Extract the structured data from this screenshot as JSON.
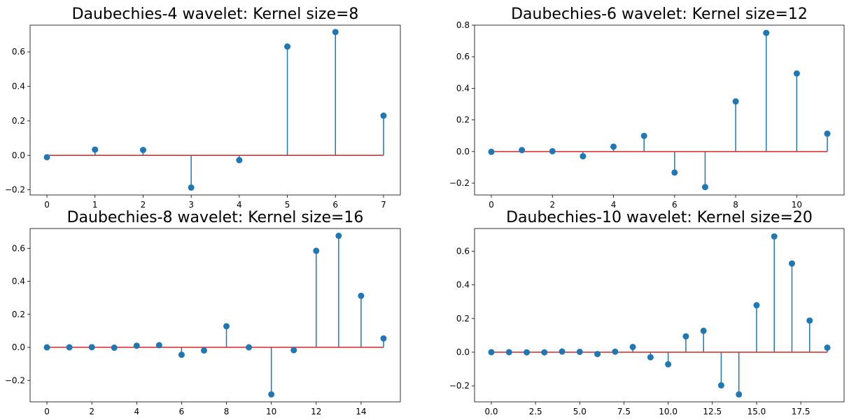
{
  "chart_data": [
    {
      "type": "stem",
      "title": "Daubechies-4 wavelet: Kernel size=8",
      "x": [
        0,
        1,
        2,
        3,
        4,
        5,
        6,
        7
      ],
      "values": [
        -0.011,
        0.033,
        0.031,
        -0.187,
        -0.028,
        0.631,
        0.715,
        0.23
      ],
      "xlim": [
        -0.35,
        7.35
      ],
      "ylim": [
        -0.23,
        0.755
      ],
      "xticks": [
        0,
        1,
        2,
        3,
        4,
        5,
        6,
        7
      ],
      "xtick_labels": [
        "0",
        "1",
        "2",
        "3",
        "4",
        "5",
        "6",
        "7"
      ],
      "yticks": [
        -0.2,
        0.0,
        0.2,
        0.4,
        0.6
      ],
      "ytick_labels": [
        "−0.2",
        "0.0",
        "0.2",
        "0.4",
        "0.6"
      ],
      "xlabel": "",
      "ylabel": "",
      "grid": false,
      "baseline": 0
    },
    {
      "type": "stem",
      "title": "Daubechies-6 wavelet: Kernel size=12",
      "x": [
        0,
        1,
        2,
        3,
        4,
        5,
        6,
        7,
        8,
        9,
        10,
        11
      ],
      "values": [
        -0.002,
        0.009,
        0.002,
        -0.03,
        0.031,
        0.099,
        -0.133,
        -0.225,
        0.317,
        0.751,
        0.494,
        0.113
      ],
      "xlim": [
        -0.55,
        11.55
      ],
      "ylim": [
        -0.275,
        0.8
      ],
      "xticks": [
        0,
        2,
        4,
        6,
        8,
        10
      ],
      "xtick_labels": [
        "0",
        "2",
        "4",
        "6",
        "8",
        "10"
      ],
      "yticks": [
        -0.2,
        0.0,
        0.2,
        0.4,
        0.6,
        0.8
      ],
      "ytick_labels": [
        "−0.2",
        "0.0",
        "0.2",
        "0.4",
        "0.6",
        "0.8"
      ],
      "xlabel": "",
      "ylabel": "",
      "grid": false,
      "baseline": 0
    },
    {
      "type": "stem",
      "title": "Daubechies-8 wavelet: Kernel size=16",
      "x": [
        0,
        1,
        2,
        3,
        4,
        5,
        6,
        7,
        8,
        9,
        10,
        11,
        12,
        13,
        14,
        15
      ],
      "values": [
        0.0,
        0.0,
        0.001,
        -0.002,
        0.01,
        0.013,
        -0.045,
        -0.019,
        0.128,
        0.0,
        -0.285,
        -0.017,
        0.585,
        0.676,
        0.312,
        0.054
      ],
      "xlim": [
        -0.75,
        15.75
      ],
      "ylim": [
        -0.33,
        0.72
      ],
      "xticks": [
        0,
        2,
        4,
        6,
        8,
        10,
        12,
        14
      ],
      "xtick_labels": [
        "0",
        "2",
        "4",
        "6",
        "8",
        "10",
        "12",
        "14"
      ],
      "yticks": [
        -0.2,
        0.0,
        0.2,
        0.4,
        0.6
      ],
      "ytick_labels": [
        "−0.2",
        "0.0",
        "0.2",
        "0.4",
        "0.6"
      ],
      "xlabel": "",
      "ylabel": "",
      "grid": false,
      "baseline": 0
    },
    {
      "type": "stem",
      "title": "Daubechies-10 wavelet: Kernel size=20",
      "x": [
        0,
        1,
        2,
        3,
        4,
        5,
        6,
        7,
        8,
        9,
        10,
        11,
        12,
        13,
        14,
        15,
        16,
        17,
        18,
        19
      ],
      "values": [
        0.0,
        0.0,
        -0.001,
        -0.001,
        0.004,
        0.002,
        -0.011,
        0.003,
        0.031,
        -0.03,
        -0.072,
        0.094,
        0.127,
        -0.197,
        -0.251,
        0.279,
        0.688,
        0.527,
        0.188,
        0.027
      ],
      "xlim": [
        -0.95,
        19.95
      ],
      "ylim": [
        -0.295,
        0.735
      ],
      "xticks": [
        0.0,
        2.5,
        5.0,
        7.5,
        10.0,
        12.5,
        15.0,
        17.5
      ],
      "xtick_labels": [
        "0.0",
        "2.5",
        "5.0",
        "7.5",
        "10.0",
        "12.5",
        "15.0",
        "17.5"
      ],
      "yticks": [
        -0.2,
        0.0,
        0.2,
        0.4,
        0.6
      ],
      "ytick_labels": [
        "−0.2",
        "0.0",
        "0.2",
        "0.4",
        "0.6"
      ],
      "xlabel": "",
      "ylabel": "",
      "grid": false,
      "baseline": 0
    }
  ],
  "colors": {
    "stem": "#1f77b4",
    "marker": "#1f77b4",
    "baseline": "#d62728",
    "axes": "#000000"
  }
}
